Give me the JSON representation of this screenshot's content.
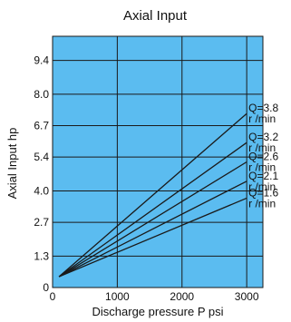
{
  "chart_data": {
    "type": "line",
    "title": "Axial Input",
    "xlabel": "Discharge pressure P psi",
    "ylabel": "Axial Input hp",
    "x_ticks": [
      0,
      1000,
      2000,
      3000
    ],
    "y_ticks": [
      "0",
      "1.3",
      "2.7",
      "4.0",
      "5.4",
      "6.7",
      "8.0",
      "9.4"
    ],
    "y_tick_values": [
      0,
      1.3,
      2.7,
      4.0,
      5.4,
      6.7,
      8.0,
      9.4
    ],
    "xlim": [
      0,
      3250
    ],
    "ylim": [
      0,
      10.4
    ],
    "grid": true,
    "plot_background": "#5bbcf0",
    "series": [
      {
        "label_top": "Q=3.8",
        "label_bottom": "r  /min",
        "x": [
          100,
          3000
        ],
        "y": [
          0.45,
          7.2
        ]
      },
      {
        "label_top": "Q=3.2",
        "label_bottom": "r  /min",
        "x": [
          100,
          3000
        ],
        "y": [
          0.45,
          6.0
        ]
      },
      {
        "label_top": "Q=2.6",
        "label_bottom": "r  /min",
        "x": [
          100,
          3000
        ],
        "y": [
          0.45,
          5.2
        ]
      },
      {
        "label_top": "Q=2.1",
        "label_bottom": "r  /min",
        "x": [
          100,
          3000
        ],
        "y": [
          0.45,
          4.4
        ]
      },
      {
        "label_top": "Q=1.6",
        "label_bottom": "r  /min",
        "x": [
          100,
          3000
        ],
        "y": [
          0.45,
          3.7
        ]
      }
    ]
  }
}
